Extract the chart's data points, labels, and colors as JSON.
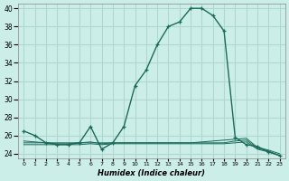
{
  "xlabel": "Humidex (Indice chaleur)",
  "bg_color": "#cceee8",
  "grid_color": "#b0d8d0",
  "line_color": "#1a6b5a",
  "xlim": [
    -0.5,
    23.5
  ],
  "ylim": [
    23.5,
    40.5
  ],
  "yticks": [
    24,
    26,
    28,
    30,
    32,
    34,
    36,
    38,
    40
  ],
  "xtick_labels": [
    "0",
    "1",
    "2",
    "3",
    "4",
    "5",
    "6",
    "7",
    "8",
    "9",
    "10",
    "11",
    "12",
    "13",
    "14",
    "15",
    "16",
    "17",
    "18",
    "19",
    "20",
    "21",
    "22",
    "23"
  ],
  "x": [
    0,
    1,
    2,
    3,
    4,
    5,
    6,
    7,
    8,
    9,
    10,
    11,
    12,
    13,
    14,
    15,
    16,
    17,
    18,
    19,
    20,
    21,
    22,
    23
  ],
  "main_y": [
    26.5,
    26.0,
    25.2,
    25.0,
    25.0,
    25.2,
    27.0,
    24.5,
    25.2,
    27.0,
    31.5,
    33.2,
    36.0,
    38.0,
    38.5,
    40.0,
    40.0,
    39.2,
    37.5,
    25.8,
    25.0,
    24.8,
    24.2,
    23.8
  ],
  "flat_y1": [
    25.0,
    25.0,
    25.0,
    25.0,
    25.0,
    25.0,
    25.1,
    25.0,
    25.1,
    25.1,
    25.1,
    25.1,
    25.1,
    25.1,
    25.1,
    25.1,
    25.1,
    25.1,
    25.1,
    25.2,
    25.3,
    24.5,
    24.2,
    23.8
  ],
  "flat_y2": [
    25.2,
    25.2,
    25.2,
    25.2,
    25.2,
    25.2,
    25.2,
    25.2,
    25.2,
    25.2,
    25.2,
    25.2,
    25.2,
    25.2,
    25.2,
    25.2,
    25.2,
    25.2,
    25.2,
    25.4,
    25.5,
    24.6,
    24.3,
    23.8
  ],
  "flat_y3": [
    25.4,
    25.3,
    25.2,
    25.1,
    25.1,
    25.2,
    25.3,
    25.1,
    25.2,
    25.2,
    25.2,
    25.2,
    25.2,
    25.2,
    25.2,
    25.2,
    25.3,
    25.4,
    25.5,
    25.6,
    25.7,
    24.7,
    24.4,
    24.0
  ]
}
